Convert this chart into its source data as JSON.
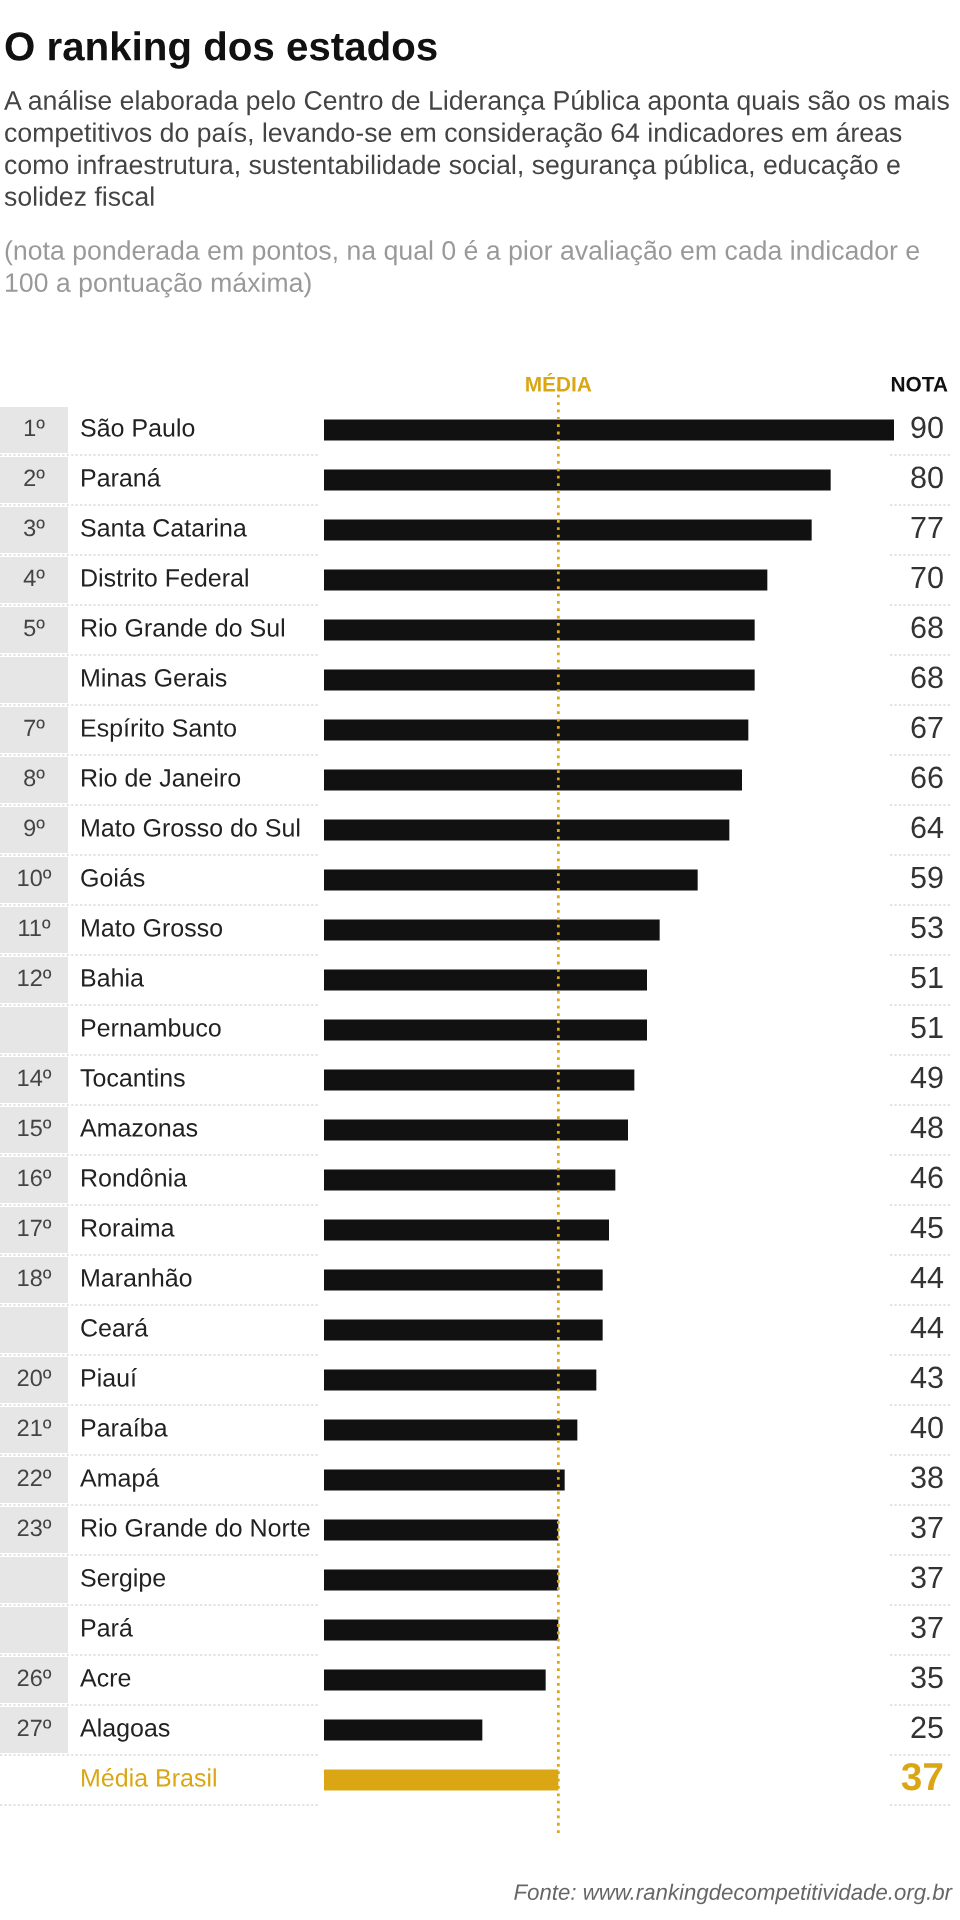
{
  "chart_data": {
    "type": "bar",
    "orientation": "horizontal",
    "title": "O ranking dos estados",
    "subtitle": "A análise elaborada pelo Centro de Liderança Pública aponta quais são os mais competitivos do país, levando-se em consideração 64 indicadores em áreas como infraestrutura, sustentabilidade social, segurança pública, educação e solidez fiscal",
    "categories": [
      "São Paulo",
      "Paraná",
      "Santa Catarina",
      "Distrito Federal",
      "Rio Grande do Sul",
      "Minas Gerais",
      "Espírito Santo",
      "Rio de Janeiro",
      "Mato Grosso do Sul",
      "Goiás",
      "Mato Grosso",
      "Bahia",
      "Pernambuco",
      "Tocantins",
      "Amazonas",
      "Rondônia",
      "Roraima",
      "Maranhão",
      "Ceará",
      "Piauí",
      "Paraíba",
      "Amapá",
      "Rio Grande do Norte",
      "Sergipe",
      "Pará",
      "Acre",
      "Alagoas",
      "Média Brasil"
    ],
    "values": [
      90,
      80,
      77,
      70,
      68,
      68,
      67,
      66,
      64,
      59,
      53,
      51,
      51,
      49,
      48,
      46,
      45,
      44,
      44,
      43,
      40,
      38,
      37,
      37,
      37,
      35,
      25,
      37
    ],
    "colors": [
      "#111111",
      "#111111",
      "#111111",
      "#111111",
      "#111111",
      "#111111",
      "#111111",
      "#111111",
      "#111111",
      "#111111",
      "#111111",
      "#111111",
      "#111111",
      "#111111",
      "#111111",
      "#111111",
      "#111111",
      "#111111",
      "#111111",
      "#111111",
      "#111111",
      "#111111",
      "#111111",
      "#111111",
      "#111111",
      "#111111",
      "#111111",
      "#dba614"
    ],
    "data_labels": true,
    "ref_lines": [
      {
        "axis": "x",
        "value": 37,
        "label": "MÉDIA",
        "color": "#dba614",
        "line_style": "dotted"
      }
    ],
    "annotations": [
      "(nota ponderada em pontos, na qual 0 é a pior avaliação em cada indicador e 100 a pontuação máxima)",
      "NOTA",
      "Fonte: www.rankingdecompetitividade.org.br",
      "1º",
      "2º",
      "3º",
      "4º",
      "5º",
      "7º",
      "8º",
      "9º",
      "10º",
      "11º",
      "12º",
      "14º",
      "15º",
      "16º",
      "17º",
      "18º",
      "20º",
      "21º",
      "22º",
      "23º",
      "26º",
      "27º"
    ]
  }
}
